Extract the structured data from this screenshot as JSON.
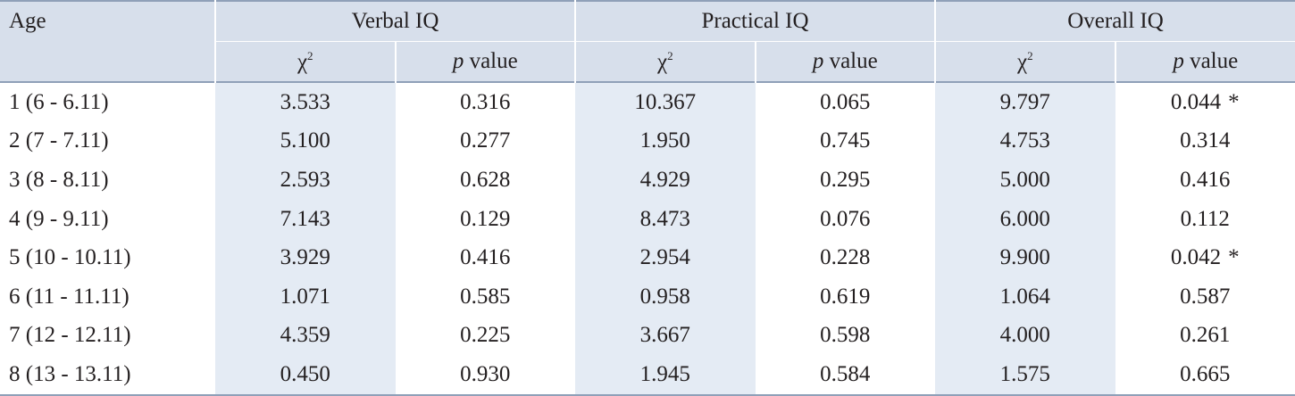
{
  "header": {
    "age_label": "Age",
    "groups": [
      "Verbal IQ",
      "Practical IQ",
      "Overall IQ"
    ],
    "chi_symbol": "χ",
    "chi_sup": "2",
    "p_italic": "p",
    "p_rest": " value"
  },
  "rows": [
    {
      "age": "1 (6 - 6.11)",
      "verbal_chi": "3.533",
      "verbal_p": "0.316",
      "practical_chi": "10.367",
      "practical_p": "0.065",
      "overall_chi": "9.797",
      "overall_p": "0.044",
      "overall_flag": "*"
    },
    {
      "age": "2 (7 - 7.11)",
      "verbal_chi": "5.100",
      "verbal_p": "0.277",
      "practical_chi": "1.950",
      "practical_p": "0.745",
      "overall_chi": "4.753",
      "overall_p": "0.314",
      "overall_flag": ""
    },
    {
      "age": "3 (8 - 8.11)",
      "verbal_chi": "2.593",
      "verbal_p": "0.628",
      "practical_chi": "4.929",
      "practical_p": "0.295",
      "overall_chi": "5.000",
      "overall_p": "0.416",
      "overall_flag": ""
    },
    {
      "age": "4 (9 - 9.11)",
      "verbal_chi": "7.143",
      "verbal_p": "0.129",
      "practical_chi": "8.473",
      "practical_p": "0.076",
      "overall_chi": "6.000",
      "overall_p": "0.112",
      "overall_flag": ""
    },
    {
      "age": "5 (10 - 10.11)",
      "verbal_chi": "3.929",
      "verbal_p": "0.416",
      "practical_chi": "2.954",
      "practical_p": "0.228",
      "overall_chi": "9.900",
      "overall_p": "0.042",
      "overall_flag": "*"
    },
    {
      "age": "6 (11 - 11.11)",
      "verbal_chi": "1.071",
      "verbal_p": "0.585",
      "practical_chi": "0.958",
      "practical_p": "0.619",
      "overall_chi": "1.064",
      "overall_p": "0.587",
      "overall_flag": ""
    },
    {
      "age": "7 (12 - 12.11)",
      "verbal_chi": "4.359",
      "verbal_p": "0.225",
      "practical_chi": "3.667",
      "practical_p": "0.598",
      "overall_chi": "4.000",
      "overall_p": "0.261",
      "overall_flag": ""
    },
    {
      "age": "8 (13 - 13.11)",
      "verbal_chi": "0.450",
      "verbal_p": "0.930",
      "practical_chi": "1.945",
      "practical_p": "0.584",
      "overall_chi": "1.575",
      "overall_p": "0.665",
      "overall_flag": ""
    }
  ]
}
